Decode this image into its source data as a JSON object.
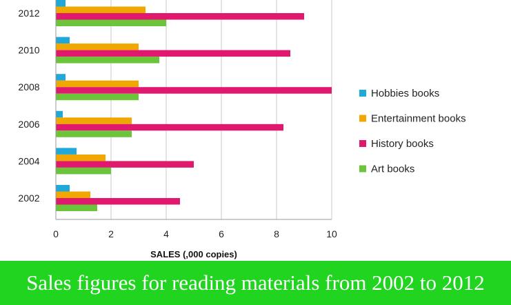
{
  "chart_data": {
    "type": "bar",
    "orientation": "horizontal",
    "categories": [
      "2002",
      "2004",
      "2006",
      "2008",
      "2010",
      "2012"
    ],
    "series": [
      {
        "name": "Hobbies books",
        "color": "#1fa8d8",
        "values": [
          0.5,
          0.75,
          0.25,
          0.35,
          0.5,
          0.35
        ]
      },
      {
        "name": "Entertainment books",
        "color": "#f0a800",
        "values": [
          1.25,
          1.8,
          2.75,
          3.0,
          3.0,
          3.25
        ]
      },
      {
        "name": "History books",
        "color": "#e0196e",
        "values": [
          4.5,
          5.0,
          8.25,
          10.0,
          8.5,
          9.0
        ]
      },
      {
        "name": "Art books",
        "color": "#6cc43a",
        "values": [
          1.5,
          2.0,
          2.75,
          3.0,
          3.75,
          4.0
        ]
      }
    ],
    "xlabel": "SALES (,000 copies)",
    "xlim": [
      0,
      10
    ],
    "xticks": [
      "0",
      "2",
      "4",
      "6",
      "8",
      "10"
    ],
    "grid": true,
    "legend_position": "right"
  },
  "caption": "Sales figures for reading materials from 2002 to 2012"
}
